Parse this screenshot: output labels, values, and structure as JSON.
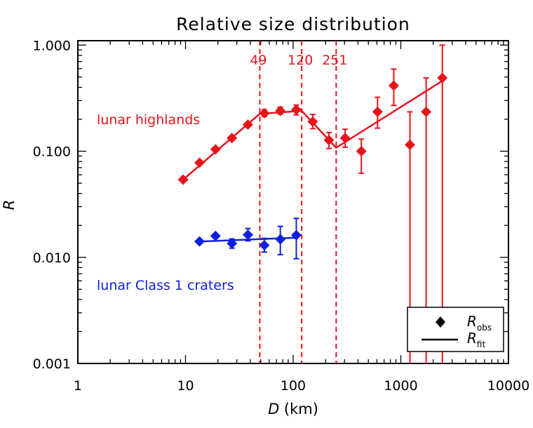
{
  "chart_data": {
    "type": "scatter",
    "title": "Relative size distribution",
    "xlabel": "D (km)",
    "xlabel_var": "D",
    "xlabel_unit": " (km)",
    "ylabel": "R",
    "xscale": "log",
    "yscale": "log",
    "xlim": [
      1,
      10000
    ],
    "ylim": [
      0.001,
      1.1
    ],
    "x_ticks": [
      {
        "value": 1,
        "label": "1"
      },
      {
        "value": 10,
        "label": "10"
      },
      {
        "value": 100,
        "label": "100"
      },
      {
        "value": 1000,
        "label": "1000"
      },
      {
        "value": 10000,
        "label": "10000"
      }
    ],
    "y_ticks": [
      {
        "value": 0.001,
        "label": "0.001"
      },
      {
        "value": 0.01,
        "label": "0.010"
      },
      {
        "value": 0.1,
        "label": "0.100"
      },
      {
        "value": 1.0,
        "label": "1.000"
      }
    ],
    "vlines": [
      {
        "x": 49,
        "label": "49"
      },
      {
        "x": 120,
        "label": "120"
      },
      {
        "x": 251,
        "label": "251"
      }
    ],
    "series": [
      {
        "name": "lunar highlands",
        "color": "#e8141c",
        "points": [
          {
            "x": 9.5,
            "y": 0.054
          },
          {
            "x": 13.5,
            "y": 0.078
          },
          {
            "x": 19,
            "y": 0.104
          },
          {
            "x": 27,
            "y": 0.133
          },
          {
            "x": 38,
            "y": 0.178
          },
          {
            "x": 54,
            "y": 0.228,
            "lo": 0.213,
            "hi": 0.246
          },
          {
            "x": 76,
            "y": 0.24,
            "lo": 0.224,
            "hi": 0.26
          },
          {
            "x": 107,
            "y": 0.246,
            "lo": 0.22,
            "hi": 0.272
          },
          {
            "x": 152,
            "y": 0.19,
            "lo": 0.163,
            "hi": 0.222
          },
          {
            "x": 215,
            "y": 0.127,
            "lo": 0.106,
            "hi": 0.15
          },
          {
            "x": 304,
            "y": 0.133,
            "lo": 0.109,
            "hi": 0.161
          },
          {
            "x": 430,
            "y": 0.1,
            "lo": 0.062,
            "hi": 0.13
          },
          {
            "x": 608,
            "y": 0.235,
            "lo": 0.165,
            "hi": 0.322
          },
          {
            "x": 860,
            "y": 0.415,
            "lo": 0.27,
            "hi": 0.595
          },
          {
            "x": 1216,
            "y": 0.115,
            "lo": 0.001,
            "hi": 0.235
          },
          {
            "x": 1720,
            "y": 0.235,
            "lo": 0.001,
            "hi": 0.49
          },
          {
            "x": 2432,
            "y": 0.49,
            "lo": 0.001,
            "hi": 1.0
          }
        ],
        "fit": [
          {
            "x": 9.5,
            "y": 0.054
          },
          {
            "x": 49,
            "y": 0.225
          },
          {
            "x": 120,
            "y": 0.24
          },
          {
            "x": 251,
            "y": 0.108
          },
          {
            "x": 2432,
            "y": 0.46
          }
        ]
      },
      {
        "name": "lunar Class 1 craters",
        "color": "#1020e0",
        "points": [
          {
            "x": 13.5,
            "y": 0.0141
          },
          {
            "x": 19,
            "y": 0.0159,
            "lo": 0.0152,
            "hi": 0.0166
          },
          {
            "x": 27,
            "y": 0.0135,
            "lo": 0.0122,
            "hi": 0.0149
          },
          {
            "x": 38,
            "y": 0.0163,
            "lo": 0.0143,
            "hi": 0.0187
          },
          {
            "x": 54,
            "y": 0.013,
            "lo": 0.0112,
            "hi": 0.0151
          },
          {
            "x": 76,
            "y": 0.0148,
            "lo": 0.0106,
            "hi": 0.0196
          },
          {
            "x": 107,
            "y": 0.0162,
            "lo": 0.0097,
            "hi": 0.0233
          }
        ],
        "fit": [
          {
            "x": 13.5,
            "y": 0.0141
          },
          {
            "x": 107,
            "y": 0.0153
          }
        ]
      }
    ],
    "legend": {
      "position": "bottom-right",
      "entries": [
        {
          "marker": "diamond",
          "label": "R",
          "sub": "obs"
        },
        {
          "marker": "line",
          "label": "R",
          "sub": "fit"
        }
      ]
    },
    "annotations": [
      {
        "text": "lunar highlands",
        "color": "#e8141c"
      },
      {
        "text": "lunar Class 1 craters",
        "color": "#1020e0"
      }
    ]
  }
}
